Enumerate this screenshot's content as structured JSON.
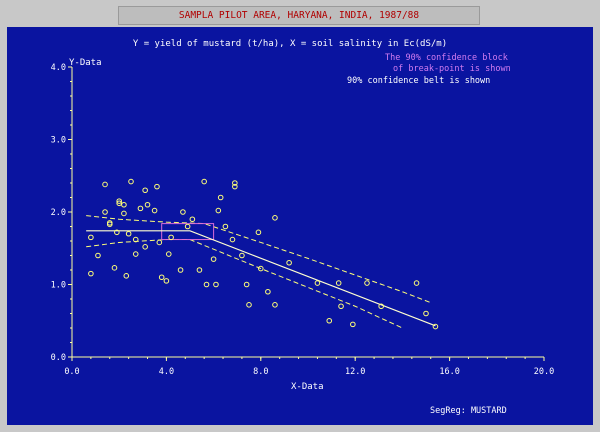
{
  "window": {
    "title": "SAMPLA PILOT AREA, HARYANA, INDIA, 1987/88"
  },
  "colors": {
    "panel": "#0a14a0",
    "title_bg": "#bdbdbd",
    "title_text": "#b00000",
    "axis": "#ffff9e",
    "text": "#ffffff",
    "points": "#ffff78",
    "block": "#d86bd8",
    "block_note": "#d27cf0"
  },
  "chart_data": {
    "type": "scatter",
    "title": "Y = yield of mustard (t/ha), X = soil salinity in Ec(dS/m)",
    "xlabel": "X-Data",
    "ylabel": "Y-Data",
    "xlim": [
      0,
      20
    ],
    "ylim": [
      0,
      4
    ],
    "xticks": [
      "0.0",
      "4.0",
      "8.0",
      "12.0",
      "16.0",
      "20.0"
    ],
    "yticks": [
      "0.0",
      "1.0",
      "2.0",
      "3.0",
      "4.0"
    ],
    "annotations": {
      "block_note_1": "The 90% confidence block",
      "block_note_2": "of break-point is shown",
      "belt_note": "90% confidence belt is shown",
      "footer": "SegReg: MUSTARD"
    },
    "points": [
      [
        0.8,
        1.65
      ],
      [
        0.8,
        1.15
      ],
      [
        1.1,
        1.4
      ],
      [
        1.4,
        2.38
      ],
      [
        1.4,
        2.0
      ],
      [
        1.6,
        1.85
      ],
      [
        1.6,
        1.83
      ],
      [
        1.8,
        1.23
      ],
      [
        1.9,
        1.72
      ],
      [
        2.0,
        2.15
      ],
      [
        2.0,
        2.12
      ],
      [
        2.2,
        2.1
      ],
      [
        2.2,
        1.98
      ],
      [
        2.3,
        1.12
      ],
      [
        2.4,
        1.7
      ],
      [
        2.5,
        2.42
      ],
      [
        2.7,
        1.62
      ],
      [
        2.7,
        1.42
      ],
      [
        2.9,
        2.05
      ],
      [
        3.1,
        2.3
      ],
      [
        3.1,
        1.52
      ],
      [
        3.2,
        2.1
      ],
      [
        3.5,
        2.02
      ],
      [
        3.6,
        2.35
      ],
      [
        3.7,
        1.58
      ],
      [
        3.8,
        1.1
      ],
      [
        4.0,
        1.05
      ],
      [
        4.1,
        1.42
      ],
      [
        4.2,
        1.65
      ],
      [
        4.6,
        1.2
      ],
      [
        4.7,
        2.0
      ],
      [
        4.9,
        1.8
      ],
      [
        5.1,
        1.9
      ],
      [
        5.4,
        1.2
      ],
      [
        5.6,
        2.42
      ],
      [
        5.7,
        1.0
      ],
      [
        6.0,
        1.35
      ],
      [
        6.1,
        1.0
      ],
      [
        6.2,
        2.02
      ],
      [
        6.3,
        2.2
      ],
      [
        6.5,
        1.8
      ],
      [
        6.8,
        1.62
      ],
      [
        6.9,
        2.4
      ],
      [
        6.9,
        2.35
      ],
      [
        7.2,
        1.4
      ],
      [
        7.4,
        1.0
      ],
      [
        7.5,
        0.72
      ],
      [
        7.9,
        1.72
      ],
      [
        8.0,
        1.22
      ],
      [
        8.3,
        0.9
      ],
      [
        8.6,
        1.92
      ],
      [
        8.6,
        0.72
      ],
      [
        9.2,
        1.3
      ],
      [
        10.4,
        1.02
      ],
      [
        10.9,
        0.5
      ],
      [
        11.3,
        1.02
      ],
      [
        11.4,
        0.7
      ],
      [
        11.9,
        0.45
      ],
      [
        12.5,
        1.02
      ],
      [
        13.1,
        0.7
      ],
      [
        14.6,
        1.02
      ],
      [
        15.0,
        0.6
      ],
      [
        15.4,
        0.42
      ]
    ],
    "fit": {
      "x": [
        0.6,
        5.0,
        15.4
      ],
      "y": [
        1.74,
        1.74,
        0.43
      ]
    },
    "upper_belt": {
      "x": [
        0.6,
        2.0,
        4.0,
        5.6,
        8.0,
        10.0,
        12.0,
        14.0,
        15.2
      ],
      "y": [
        1.95,
        1.9,
        1.86,
        1.84,
        1.58,
        1.36,
        1.13,
        0.9,
        0.75
      ]
    },
    "lower_belt": {
      "x": [
        0.6,
        2.0,
        4.0,
        5.0,
        8.0,
        10.0,
        12.0,
        14.0
      ],
      "y": [
        1.52,
        1.58,
        1.62,
        1.62,
        1.22,
        0.96,
        0.7,
        0.4
      ]
    },
    "confidence_block": {
      "x": [
        3.8,
        6.0
      ],
      "y": [
        1.62,
        1.84
      ]
    }
  }
}
